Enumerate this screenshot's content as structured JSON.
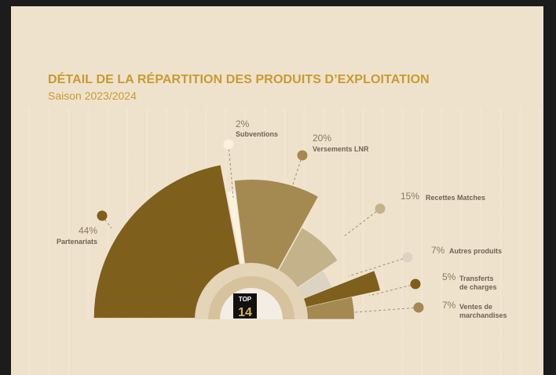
{
  "header": {
    "title": "DÉTAIL DE LA RÉPARTITION DES PRODUITS D’EXPLOITATION",
    "subtitle": "Saison 2023/2024"
  },
  "logo": {
    "text_top": "TOP",
    "text_bottom": "14"
  },
  "chart_data": {
    "type": "pie",
    "title": "DÉTAIL DE LA RÉPARTITION DES PRODUITS D’EXPLOITATION",
    "subtitle": "Saison 2023/2024",
    "unit": "%",
    "slices": [
      {
        "label": "Partenariats",
        "value": 44,
        "pct_text": "44%",
        "label_lines": [
          "Partenariats"
        ],
        "color": "#7e5f1b"
      },
      {
        "label": "Subventions",
        "value": 2,
        "pct_text": "2%",
        "label_lines": [
          "Subventions"
        ],
        "color": "#fbf1df"
      },
      {
        "label": "Versements LNR",
        "value": 20,
        "pct_text": "20%",
        "label_lines": [
          "Versements LNR"
        ],
        "color": "#a48951"
      },
      {
        "label": "Recettes Matches",
        "value": 15,
        "pct_text": "15%",
        "label_lines": [
          "Recettes Matches"
        ],
        "color": "#c4b28b"
      },
      {
        "label": "Autres produits",
        "value": 7,
        "pct_text": "7%",
        "label_lines": [
          "Autres produits"
        ],
        "color": "#ddd3c2"
      },
      {
        "label": "Transferts de charges",
        "value": 5,
        "pct_text": "5%",
        "label_lines": [
          "Transferts",
          "de charges"
        ],
        "color": "#7e5f1b"
      },
      {
        "label": "Ventes de marchandises",
        "value": 7,
        "pct_text": "7%",
        "label_lines": [
          "Ventes de",
          "marchandises"
        ],
        "color": "#a48951"
      }
    ]
  }
}
